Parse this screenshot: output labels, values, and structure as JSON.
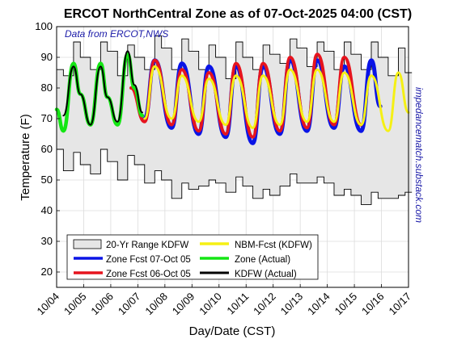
{
  "colors": {
    "range_fill": "#e6e6e6",
    "range_edge": "#000000",
    "zone_fcst_oct7": "#0a14e6",
    "zone_fcst_oct6": "#e6141e",
    "nbm_fcst": "#f5f014",
    "zone_actual": "#14e614",
    "kdfw_actual": "#000000",
    "annotation_text": "#1a1aa8"
  },
  "chart_data": {
    "type": "line",
    "title": "ERCOT NorthCentral Zone as of 07-Oct-2025 04:00 (CST)",
    "xlabel": "Day/Date (CST)",
    "ylabel": "Temperature (F)",
    "annotation": "Data from ERCOT,NWS",
    "side_note": "impedancematch.substack.com",
    "xlim": [
      "10/04",
      "10/17"
    ],
    "ylim": [
      15,
      100
    ],
    "yticks": [
      20,
      30,
      40,
      50,
      60,
      70,
      80,
      90,
      100
    ],
    "xticks": [
      "10/04",
      "10/05",
      "10/06",
      "10/07",
      "10/08",
      "10/09",
      "10/10",
      "10/11",
      "10/12",
      "10/13",
      "10/14",
      "10/15",
      "10/16",
      "10/17"
    ],
    "grid": true,
    "legend_position": "bottom-left",
    "legend": [
      "20-Yr Range KDFW",
      "NBM-Fcst (KDFW)",
      "Zone Fcst 07-Oct 05",
      "Zone (Actual)",
      "Zone Fcst 06-Oct 05",
      "KDFW (Actual)"
    ],
    "series": [
      {
        "name": "20-Yr Range KDFW",
        "kind": "band",
        "x": [
          "10/04 00:00",
          "10/04 06:00",
          "10/04 15:00",
          "10/04 21:00",
          "10/05 06:00",
          "10/05 15:00",
          "10/05 21:00",
          "10/06 06:00",
          "10/06 15:00",
          "10/06 21:00",
          "10/07 06:00",
          "10/07 15:00",
          "10/07 21:00",
          "10/08 06:00",
          "10/08 15:00",
          "10/08 21:00",
          "10/09 06:00",
          "10/09 15:00",
          "10/09 21:00",
          "10/10 06:00",
          "10/10 15:00",
          "10/10 21:00",
          "10/11 06:00",
          "10/11 15:00",
          "10/11 21:00",
          "10/12 06:00",
          "10/12 15:00",
          "10/12 21:00",
          "10/13 06:00",
          "10/13 15:00",
          "10/13 21:00",
          "10/14 06:00",
          "10/14 15:00",
          "10/14 21:00",
          "10/15 06:00",
          "10/15 15:00",
          "10/15 21:00",
          "10/16 06:00",
          "10/16 15:00",
          "10/16 21:00"
        ],
        "low": [
          60,
          53,
          59,
          55,
          52,
          60,
          56,
          50,
          58,
          55,
          49,
          53,
          50,
          44,
          49,
          47,
          48,
          50,
          49,
          46,
          51,
          48,
          44,
          47,
          45,
          48,
          52,
          49,
          49,
          51,
          49,
          45,
          47,
          45,
          42,
          46,
          44,
          44,
          45,
          46
        ],
        "high": [
          86,
          84,
          95,
          90,
          86,
          95,
          92,
          84,
          94,
          90,
          86,
          97,
          93,
          86,
          96,
          92,
          86,
          94,
          90,
          83,
          95,
          90,
          86,
          94,
          91,
          88,
          96,
          93,
          87,
          95,
          92,
          86,
          95,
          91,
          86,
          95,
          90,
          84,
          93,
          85
        ]
      },
      {
        "name": "NBM-Fcst (KDFW)",
        "x": [
          "10/07 06:00",
          "10/07 15:00",
          "10/08 06:00",
          "10/08 15:00",
          "10/09 06:00",
          "10/09 15:00",
          "10/10 06:00",
          "10/10 15:00",
          "10/11 06:00",
          "10/11 15:00",
          "10/12 06:00",
          "10/12 15:00",
          "10/13 06:00",
          "10/13 15:00",
          "10/14 06:00",
          "10/14 15:00",
          "10/15 06:00",
          "10/15 15:00",
          "10/16 06:00",
          "10/16 15:00",
          "10/17 00:00"
        ],
        "y": [
          70,
          87,
          70,
          84,
          69,
          83,
          68,
          84,
          67,
          84,
          68,
          86,
          69,
          86,
          69,
          85,
          68,
          84,
          66,
          85,
          72
        ]
      },
      {
        "name": "Zone Fcst 07-Oct 05",
        "x": [
          "10/07 06:00",
          "10/07 15:00",
          "10/08 06:00",
          "10/08 15:00",
          "10/09 06:00",
          "10/09 15:00",
          "10/10 06:00",
          "10/10 15:00",
          "10/11 06:00",
          "10/11 15:00",
          "10/12 06:00",
          "10/12 15:00",
          "10/13 06:00",
          "10/13 15:00",
          "10/14 06:00",
          "10/14 15:00",
          "10/15 06:00",
          "10/15 15:00",
          "10/15 23:00"
        ],
        "y": [
          70,
          89,
          67,
          88,
          65,
          87,
          64,
          87,
          62,
          87,
          65,
          89,
          66,
          89,
          67,
          87,
          66,
          89,
          74
        ]
      },
      {
        "name": "Zone Fcst 06-Oct 05",
        "x": [
          "10/06 18:00",
          "10/07 06:00",
          "10/07 15:00",
          "10/08 06:00",
          "10/08 15:00",
          "10/09 06:00",
          "10/09 15:00",
          "10/10 06:00",
          "10/10 15:00",
          "10/11 06:00",
          "10/11 15:00",
          "10/12 06:00",
          "10/12 15:00",
          "10/13 06:00",
          "10/13 15:00",
          "10/14 06:00",
          "10/14 15:00",
          "10/15 06:00"
        ],
        "y": [
          80,
          69,
          89,
          68,
          86,
          66,
          85,
          65,
          88,
          64,
          88,
          66,
          90,
          67,
          91,
          68,
          90,
          68
        ]
      },
      {
        "name": "Zone (Actual)",
        "x": [
          "10/04 00:00",
          "10/04 06:00",
          "10/04 15:00",
          "10/04 21:00",
          "10/05 06:00",
          "10/05 15:00",
          "10/05 21:00",
          "10/06 06:00",
          "10/06 15:00",
          "10/06 21:00",
          "10/07 04:00"
        ],
        "y": [
          73,
          66,
          88,
          78,
          68,
          88,
          77,
          68,
          91,
          80,
          71
        ]
      },
      {
        "name": "KDFW (Actual)",
        "x": [
          "10/04 06:00",
          "10/04 15:00",
          "10/04 21:00",
          "10/05 06:00",
          "10/05 15:00",
          "10/05 21:00",
          "10/06 06:00",
          "10/06 15:00",
          "10/06 21:00",
          "10/07 04:00"
        ],
        "y": [
          71,
          87,
          78,
          68,
          87,
          77,
          69,
          92,
          81,
          72
        ]
      }
    ]
  }
}
